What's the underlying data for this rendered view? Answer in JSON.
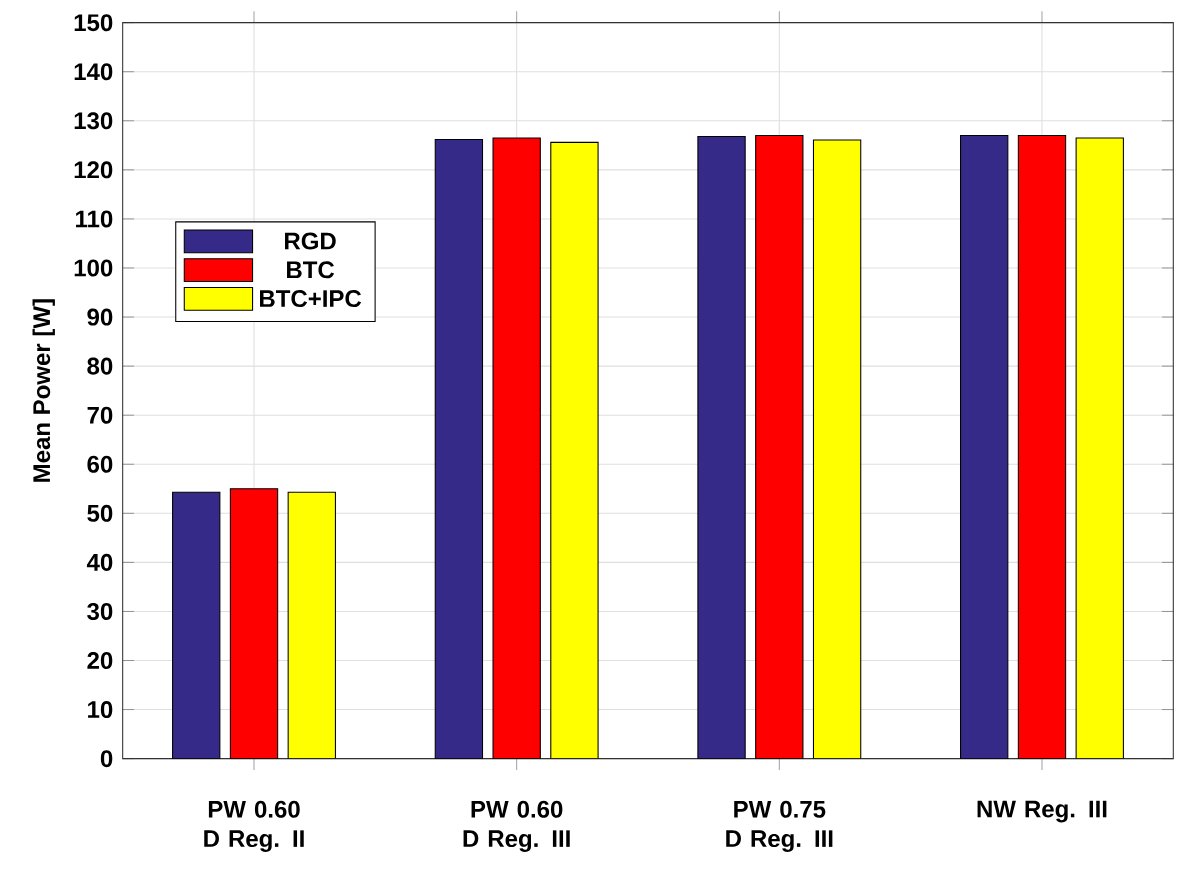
{
  "chart_data": {
    "type": "bar",
    "ylabel": "Mean Power [W]",
    "categories": [
      "PW 0.60 D Reg. II",
      "PW 0.60 D Reg. III",
      "PW 0.75 D Reg. III",
      "NW Reg. III"
    ],
    "series": [
      {
        "name": "RGD",
        "color": "#352a87",
        "values": [
          54.3,
          126.2,
          126.8,
          127
        ]
      },
      {
        "name": "BTC",
        "color": "#ff0000",
        "values": [
          55,
          126.5,
          127,
          127
        ]
      },
      {
        "name": "BTC+IPC",
        "color": "#ffff00",
        "values": [
          54.3,
          125.6,
          126.1,
          126.5
        ]
      }
    ],
    "ylim": [
      0,
      150
    ],
    "yticks": [
      0,
      10,
      20,
      30,
      40,
      50,
      60,
      70,
      80,
      90,
      100,
      110,
      120,
      130,
      140,
      150
    ],
    "grid": true,
    "legend": "left"
  }
}
